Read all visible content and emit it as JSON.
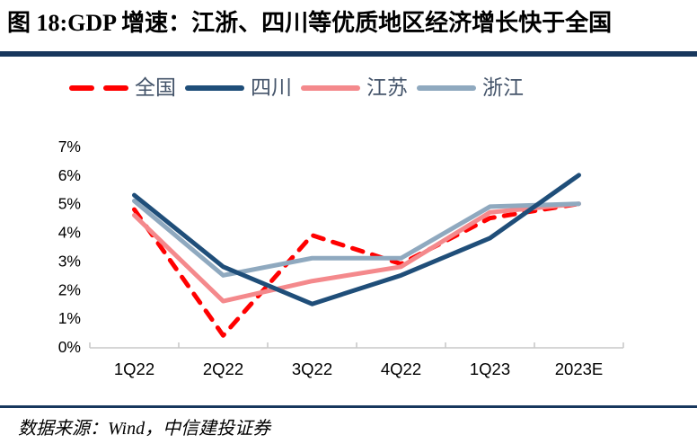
{
  "page": {
    "title": "图 18:GDP 增速：江浙、四川等优质地区经济增长快于全国",
    "source_note": "数据来源：Wind，中信建投证券"
  },
  "colors": {
    "title_bar": "#17375D",
    "footer_rule": "#17375D",
    "axis": "#C9C9C9",
    "tick_label": "#000000",
    "legend_text": "#44546A"
  },
  "chart_data": {
    "type": "line",
    "title": "",
    "xlabel": "",
    "ylabel": "",
    "categories": [
      "1Q22",
      "2Q22",
      "3Q22",
      "4Q22",
      "1Q23",
      "2023E"
    ],
    "series": [
      {
        "key": "national",
        "name": "全国",
        "color": "#FF0000",
        "style": "dashed",
        "zindex": 1,
        "values": [
          4.8,
          0.4,
          3.9,
          2.9,
          4.5,
          5.0
        ]
      },
      {
        "key": "sichuan",
        "name": "四川",
        "color": "#1F4E79",
        "style": "solid",
        "zindex": 4,
        "values": [
          5.3,
          2.8,
          1.5,
          2.5,
          3.8,
          6.0
        ]
      },
      {
        "key": "jiangsu",
        "name": "江苏",
        "color": "#F4898C",
        "style": "solid",
        "zindex": 2,
        "values": [
          4.6,
          1.6,
          2.3,
          2.8,
          4.7,
          5.0
        ]
      },
      {
        "key": "zhejiang",
        "name": "浙江",
        "color": "#8FA9BF",
        "style": "solid",
        "zindex": 3,
        "values": [
          5.1,
          2.5,
          3.1,
          3.1,
          4.9,
          5.0
        ]
      }
    ],
    "ylim": [
      0,
      7
    ],
    "ytick_step": 1,
    "ytick_labels": [
      "0%",
      "1%",
      "2%",
      "3%",
      "4%",
      "5%",
      "6%",
      "7%"
    ],
    "grid": false,
    "legend_position": "top",
    "line_width": 5
  }
}
